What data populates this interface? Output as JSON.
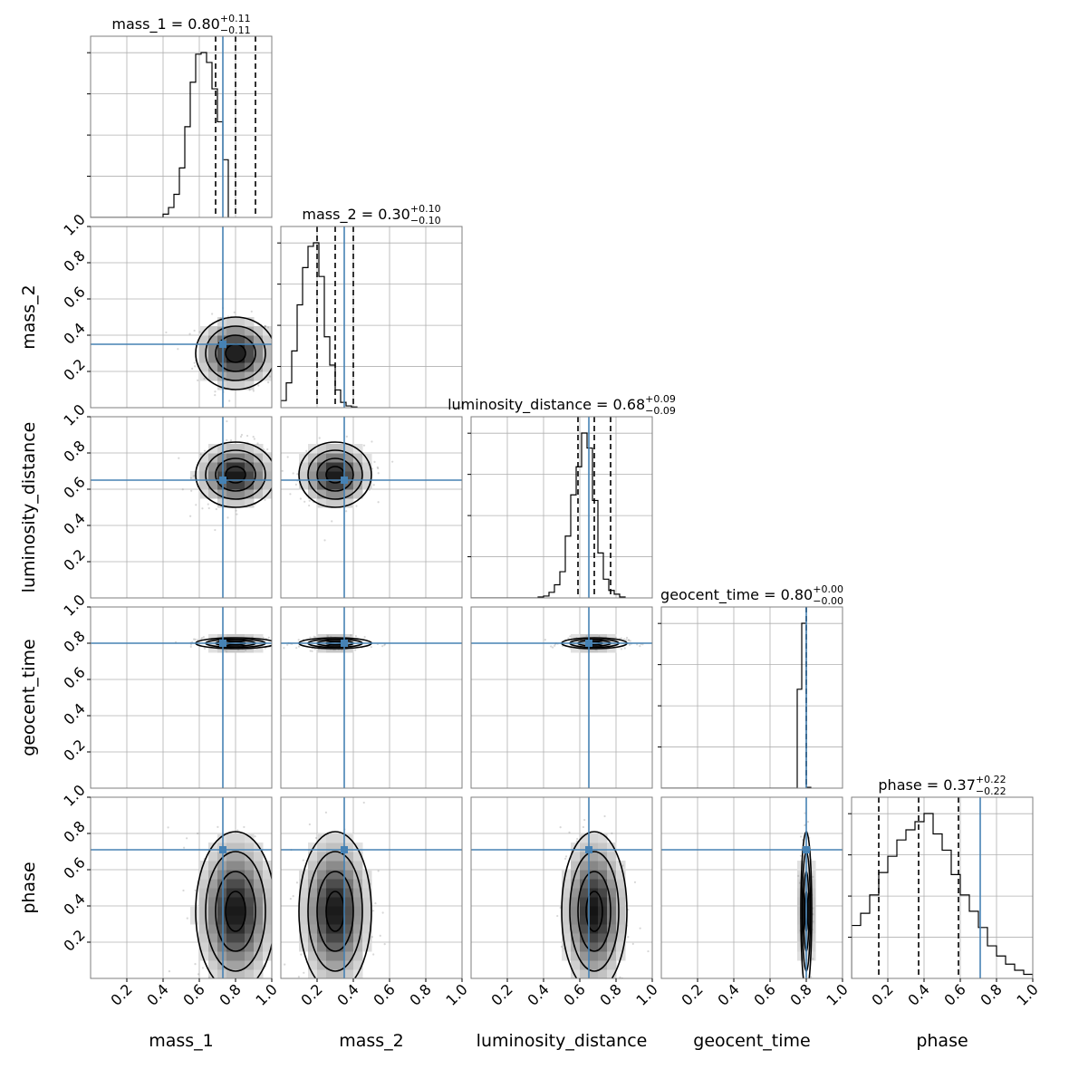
{
  "chart_data": {
    "type": "corner",
    "parameters": [
      "mass_1",
      "mass_2",
      "luminosity_distance",
      "geocent_time",
      "phase"
    ],
    "axis_labels": [
      "mass_1",
      "mass_2",
      "luminosity_distance",
      "geocent_time",
      "phase"
    ],
    "range": [
      0,
      1
    ],
    "ticks": [
      0.2,
      0.4,
      0.6,
      0.8,
      1.0
    ],
    "tick_labels": [
      "0.2",
      "0.4",
      "0.6",
      "0.8",
      "1.0"
    ],
    "grid": true,
    "colors": {
      "truth": "#4682b4",
      "hist": "#000000",
      "contour": "#000000",
      "points": "#8c8c8c"
    },
    "truths": [
      0.73,
      0.35,
      0.65,
      0.8,
      0.71
    ],
    "posteriors": [
      {
        "name": "mass_1",
        "title_name": "mass_1 = ",
        "median": "0.80",
        "plus": "+0.11",
        "minus": "−0.11",
        "quantiles": [
          0.69,
          0.8,
          0.91
        ],
        "mean": 0.8,
        "sd": 0.11,
        "hist": {
          "edges_start": 0.4,
          "bin_width": 0.03,
          "counts": [
            2,
            6,
            14,
            30,
            55,
            82,
            99,
            100,
            94,
            78,
            58,
            35
          ]
        }
      },
      {
        "name": "mass_2",
        "title_name": "mass_2 = ",
        "median": "0.30",
        "plus": "+0.10",
        "minus": "−0.10",
        "quantiles": [
          0.2,
          0.3,
          0.4
        ],
        "mean": 0.3,
        "sd": 0.1,
        "hist": {
          "edges_start": 0.0,
          "bin_width": 0.03,
          "counts": [
            4,
            14,
            32,
            58,
            79,
            91,
            93,
            74,
            40,
            24,
            10,
            3,
            1,
            0.4
          ]
        }
      },
      {
        "name": "luminosity_distance",
        "title_name": "luminosity_distance = ",
        "median": "0.68",
        "plus": "+0.09",
        "minus": "−0.09",
        "quantiles": [
          0.59,
          0.68,
          0.77
        ],
        "mean": 0.68,
        "sd": 0.09,
        "hist": {
          "edges_start": 0.37,
          "bin_width": 0.03,
          "counts": [
            0.5,
            1,
            3,
            7,
            14,
            33,
            55,
            70,
            88,
            80,
            52,
            24,
            10,
            4,
            2,
            0.5
          ]
        }
      },
      {
        "name": "geocent_time",
        "title_name": "geocent_time = ",
        "median": "0.80",
        "plus": "+0.00",
        "minus": "−0.00",
        "quantiles": [
          0.8,
          0.8,
          0.8
        ],
        "mean": 0.8,
        "sd": 0.015,
        "hist": {
          "edges_start": 0.75,
          "bin_width": 0.025,
          "counts": [
            60,
            100,
            0.5
          ]
        }
      },
      {
        "name": "phase",
        "title_name": "phase = ",
        "median": "0.37",
        "plus": "+0.22",
        "minus": "−0.22",
        "quantiles": [
          0.15,
          0.37,
          0.59
        ],
        "mean": 0.37,
        "sd": 0.22,
        "hist": {
          "edges_start": 0.0,
          "bin_width": 0.05,
          "counts": [
            26,
            32,
            41,
            52,
            60,
            68,
            73,
            77,
            81,
            71,
            63,
            51,
            41,
            33,
            25,
            16,
            11,
            7,
            4,
            2
          ]
        }
      }
    ]
  }
}
